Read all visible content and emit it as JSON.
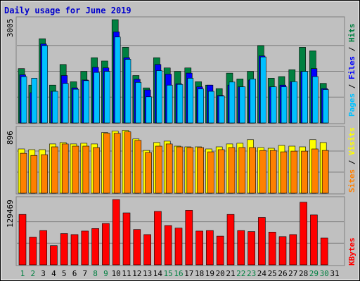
{
  "title": "Daily usage for June 2019",
  "colors": {
    "background": "#C0C0C0",
    "plot": "#C0C0C0",
    "title_text": "#0000CC",
    "hits": "#008040",
    "files": "#0000FF",
    "pages": "#00C0FF",
    "visits": "#FFFF00",
    "sites": "#FF8000",
    "kbytes": "#FF0000",
    "weekend_day": "#008040",
    "weekday": "#000000"
  },
  "chart_data": [
    {
      "type": "bar",
      "panel": "hits-files-pages",
      "categories": [
        "1",
        "2",
        "3",
        "4",
        "5",
        "6",
        "7",
        "8",
        "9",
        "10",
        "11",
        "12",
        "13",
        "14",
        "15",
        "16",
        "17",
        "18",
        "19",
        "20",
        "21",
        "22",
        "23",
        "24",
        "25",
        "26",
        "27",
        "28",
        "29",
        "30",
        "31"
      ],
      "ylabel_parts": [
        "Pages",
        "Files",
        "Hits"
      ],
      "ymax_label": "3005",
      "ylim": [
        0,
        3005
      ],
      "series": [
        {
          "name": "Hits",
          "values": [
            1580,
            1100,
            2450,
            1100,
            1700,
            1200,
            1500,
            1900,
            1800,
            3005,
            2200,
            1380,
            1020,
            1900,
            1600,
            1500,
            1600,
            1200,
            1100,
            1000,
            1450,
            1280,
            1500,
            2250,
            1300,
            1350,
            1550,
            2200,
            2100,
            1150,
            0
          ]
        },
        {
          "name": "Files",
          "values": [
            1400,
            880,
            2300,
            920,
            1380,
            1020,
            1250,
            1620,
            1600,
            2650,
            1900,
            1270,
            960,
            1700,
            1420,
            1140,
            1450,
            1050,
            1100,
            800,
            1100,
            1050,
            1250,
            1950,
            1050,
            1100,
            1200,
            1500,
            1580,
            1000,
            0
          ]
        },
        {
          "name": "Pages",
          "values": [
            1350,
            1300,
            2250,
            920,
            1150,
            980,
            1230,
            1470,
            1500,
            2500,
            1850,
            1180,
            760,
            1520,
            1100,
            1120,
            1300,
            990,
            920,
            780,
            1190,
            1050,
            1280,
            1920,
            1050,
            1050,
            1200,
            1500,
            1350,
            970,
            0
          ]
        }
      ]
    },
    {
      "type": "bar",
      "panel": "visits-sites",
      "categories": [
        "1",
        "2",
        "3",
        "4",
        "5",
        "6",
        "7",
        "8",
        "9",
        "10",
        "11",
        "12",
        "13",
        "14",
        "15",
        "16",
        "17",
        "18",
        "19",
        "20",
        "21",
        "22",
        "23",
        "24",
        "25",
        "26",
        "27",
        "28",
        "29",
        "30",
        "31"
      ],
      "ylabel_parts": [
        "Sites",
        "Visits"
      ],
      "ymax_label": "896",
      "ylim": [
        0,
        896
      ],
      "series": [
        {
          "name": "Visits",
          "values": [
            620,
            610,
            610,
            690,
            710,
            690,
            700,
            690,
            850,
            870,
            880,
            760,
            600,
            710,
            730,
            660,
            650,
            650,
            620,
            650,
            690,
            700,
            750,
            640,
            630,
            670,
            660,
            650,
            750,
            710,
            0
          ]
        },
        {
          "name": "Sites",
          "values": [
            560,
            530,
            540,
            650,
            690,
            660,
            660,
            640,
            840,
            840,
            860,
            740,
            570,
            660,
            690,
            650,
            640,
            640,
            580,
            610,
            640,
            640,
            640,
            600,
            600,
            580,
            590,
            590,
            620,
            600,
            0
          ]
        }
      ]
    },
    {
      "type": "bar",
      "panel": "kbytes",
      "categories": [
        "1",
        "2",
        "3",
        "4",
        "5",
        "6",
        "7",
        "8",
        "9",
        "10",
        "11",
        "12",
        "13",
        "14",
        "15",
        "16",
        "17",
        "18",
        "19",
        "20",
        "21",
        "22",
        "23",
        "24",
        "25",
        "26",
        "27",
        "28",
        "29",
        "30",
        "31"
      ],
      "ylabel_parts": [
        "KBytes"
      ],
      "ymax_label": "129469",
      "ylim": [
        0,
        129469
      ],
      "series": [
        {
          "name": "KBytes",
          "values": [
            100000,
            55000,
            68000,
            38000,
            62000,
            60000,
            67000,
            72000,
            82000,
            129469,
            103000,
            70000,
            60000,
            106000,
            78000,
            73000,
            108000,
            67000,
            68000,
            57000,
            100000,
            68000,
            66000,
            94000,
            65000,
            56000,
            60000,
            124000,
            99000,
            53000,
            0
          ]
        }
      ]
    }
  ],
  "weekend_days": [
    "1",
    "2",
    "8",
    "9",
    "15",
    "16",
    "22",
    "23",
    "29",
    "30"
  ]
}
